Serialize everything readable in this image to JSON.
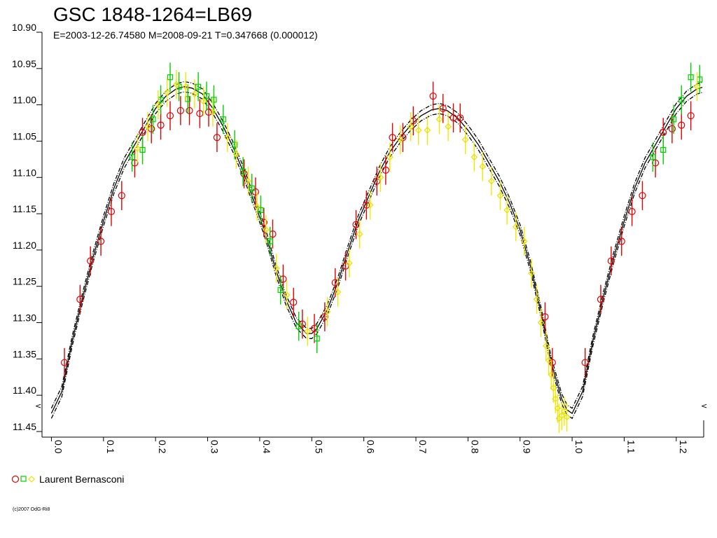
{
  "header": {
    "title": "GSC 1848-1264=LB69",
    "subtitle": "E=2003-12-26.74580    M=2008-09-21    T=0.347668 (0.000012)"
  },
  "footer": {
    "copyright": "(c)2007 OdG-Ri8"
  },
  "legend": {
    "label": "Laurent Bernasconi",
    "placement": "bottom-left"
  },
  "minimum_markers": [
    "<",
    "<"
  ],
  "colors": {
    "red": "#e00000",
    "green": "#00d000",
    "yellow": "#f0e800",
    "model": "#000000"
  },
  "chart_data": {
    "type": "scatter",
    "y_inverted": true,
    "xlim": [
      -0.01,
      1.25
    ],
    "ylim": [
      10.9,
      11.45
    ],
    "x_ticks": [
      "0.0",
      "0.1",
      "0.2",
      "0.3",
      "0.4",
      "0.5",
      "0.6",
      "0.7",
      "0.8",
      "0.9",
      "1.0",
      "1.1",
      "1.2"
    ],
    "y_ticks": [
      "10.90",
      "10.95",
      "11.00",
      "11.05",
      "11.10",
      "11.15",
      "11.20",
      "11.25",
      "11.30",
      "11.35",
      "11.40",
      "11.45"
    ],
    "grid": false,
    "series": [
      {
        "color": "red",
        "marker": "circle",
        "error": 0.02,
        "points": [
          [
            0.025,
            11.355
          ],
          [
            0.055,
            11.268
          ],
          [
            0.075,
            11.215
          ],
          [
            0.095,
            11.188
          ],
          [
            0.115,
            11.147
          ],
          [
            0.135,
            11.125
          ],
          [
            0.16,
            11.08
          ],
          [
            0.175,
            11.038
          ],
          [
            0.192,
            11.033
          ],
          [
            0.21,
            11.028
          ],
          [
            0.228,
            11.015
          ],
          [
            0.248,
            11.008
          ],
          [
            0.265,
            11.008
          ],
          [
            0.285,
            11.012
          ],
          [
            0.302,
            11.01
          ],
          [
            0.318,
            11.045
          ],
          [
            0.37,
            11.095
          ],
          [
            0.392,
            11.12
          ],
          [
            0.408,
            11.162
          ],
          [
            0.425,
            11.178
          ],
          [
            0.445,
            11.24
          ],
          [
            0.465,
            11.272
          ],
          [
            0.482,
            11.302
          ],
          [
            0.505,
            11.308
          ],
          [
            0.525,
            11.292
          ],
          [
            0.545,
            11.245
          ],
          [
            0.565,
            11.222
          ],
          [
            0.585,
            11.165
          ],
          [
            0.605,
            11.138
          ],
          [
            0.625,
            11.105
          ],
          [
            0.642,
            11.09
          ],
          [
            0.655,
            11.045
          ],
          [
            0.675,
            11.045
          ],
          [
            0.695,
            11.022
          ],
          [
            0.733,
            10.988
          ],
          [
            0.752,
            11.005
          ],
          [
            0.772,
            11.018
          ],
          [
            0.785,
            11.018
          ],
          [
            0.948,
            11.292
          ],
          [
            0.962,
            11.355
          ],
          [
            1.025,
            11.355
          ],
          [
            1.055,
            11.268
          ],
          [
            1.075,
            11.215
          ],
          [
            1.095,
            11.188
          ],
          [
            1.115,
            11.147
          ],
          [
            1.135,
            11.125
          ],
          [
            1.16,
            11.08
          ],
          [
            1.175,
            11.038
          ],
          [
            1.192,
            11.033
          ],
          [
            1.21,
            11.028
          ],
          [
            1.228,
            11.015
          ]
        ]
      },
      {
        "color": "green",
        "marker": "square",
        "error": 0.02,
        "points": [
          [
            0.155,
            11.072
          ],
          [
            0.175,
            11.062
          ],
          [
            0.195,
            11.02
          ],
          [
            0.21,
            10.993
          ],
          [
            0.228,
            10.962
          ],
          [
            0.245,
            10.975
          ],
          [
            0.262,
            10.992
          ],
          [
            0.282,
            10.975
          ],
          [
            0.298,
            10.988
          ],
          [
            0.312,
            10.993
          ],
          [
            0.33,
            11.02
          ],
          [
            0.352,
            11.055
          ],
          [
            0.368,
            11.092
          ],
          [
            0.385,
            11.115
          ],
          [
            0.402,
            11.145
          ],
          [
            0.42,
            11.188
          ],
          [
            0.44,
            11.255
          ],
          [
            0.475,
            11.305
          ],
          [
            0.51,
            11.322
          ],
          [
            1.155,
            11.072
          ],
          [
            1.175,
            11.062
          ],
          [
            1.195,
            11.02
          ],
          [
            1.21,
            10.993
          ],
          [
            1.228,
            10.962
          ],
          [
            1.245,
            10.965
          ]
        ]
      },
      {
        "color": "yellow",
        "marker": "diamond",
        "error": 0.02,
        "points": [
          [
            0.165,
            11.06
          ],
          [
            0.185,
            11.03
          ],
          [
            0.205,
            11.0
          ],
          [
            0.222,
            10.983
          ],
          [
            0.24,
            10.972
          ],
          [
            0.258,
            10.975
          ],
          [
            0.275,
            10.985
          ],
          [
            0.292,
            10.995
          ],
          [
            0.31,
            11.01
          ],
          [
            0.338,
            11.045
          ],
          [
            0.355,
            11.068
          ],
          [
            0.378,
            11.105
          ],
          [
            0.395,
            11.14
          ],
          [
            0.412,
            11.172
          ],
          [
            0.432,
            11.225
          ],
          [
            0.452,
            11.262
          ],
          [
            0.492,
            11.312
          ],
          [
            0.53,
            11.285
          ],
          [
            0.55,
            11.258
          ],
          [
            0.572,
            11.218
          ],
          [
            0.592,
            11.178
          ],
          [
            0.612,
            11.138
          ],
          [
            0.632,
            11.1
          ],
          [
            0.65,
            11.072
          ],
          [
            0.67,
            11.048
          ],
          [
            0.69,
            11.03
          ],
          [
            0.705,
            11.035
          ],
          [
            0.722,
            11.035
          ],
          [
            0.745,
            11.02
          ],
          [
            0.762,
            11.03
          ],
          [
            0.795,
            11.048
          ],
          [
            0.812,
            11.072
          ],
          [
            0.828,
            11.085
          ],
          [
            0.845,
            11.105
          ],
          [
            0.862,
            11.125
          ],
          [
            0.875,
            11.145
          ],
          [
            0.892,
            11.168
          ],
          [
            0.908,
            11.188
          ],
          [
            0.922,
            11.232
          ],
          [
            0.932,
            11.268
          ],
          [
            0.94,
            11.3
          ],
          [
            0.95,
            11.332
          ],
          [
            0.955,
            11.352
          ],
          [
            0.96,
            11.372
          ],
          [
            0.964,
            11.39
          ],
          [
            0.968,
            11.405
          ],
          [
            0.972,
            11.418
          ],
          [
            0.975,
            11.432
          ],
          [
            0.98,
            11.428
          ],
          [
            0.985,
            11.422
          ],
          [
            0.99,
            11.43
          ],
          [
            1.24,
            10.975
          ]
        ]
      }
    ],
    "model_curves": [
      {
        "style": "solid",
        "points": [
          [
            0.0,
            11.425
          ],
          [
            0.02,
            11.395
          ],
          [
            0.04,
            11.325
          ],
          [
            0.06,
            11.265
          ],
          [
            0.08,
            11.21
          ],
          [
            0.1,
            11.16
          ],
          [
            0.12,
            11.115
          ],
          [
            0.14,
            11.08
          ],
          [
            0.16,
            11.055
          ],
          [
            0.18,
            11.03
          ],
          [
            0.2,
            11.005
          ],
          [
            0.22,
            10.988
          ],
          [
            0.24,
            10.978
          ],
          [
            0.255,
            10.975
          ],
          [
            0.27,
            10.977
          ],
          [
            0.29,
            10.985
          ],
          [
            0.31,
            11.005
          ],
          [
            0.33,
            11.03
          ],
          [
            0.35,
            11.06
          ],
          [
            0.37,
            11.095
          ],
          [
            0.39,
            11.135
          ],
          [
            0.41,
            11.175
          ],
          [
            0.43,
            11.225
          ],
          [
            0.45,
            11.268
          ],
          [
            0.47,
            11.3
          ],
          [
            0.49,
            11.315
          ],
          [
            0.5,
            11.315
          ],
          [
            0.51,
            11.308
          ],
          [
            0.53,
            11.282
          ],
          [
            0.55,
            11.245
          ],
          [
            0.57,
            11.2
          ],
          [
            0.59,
            11.158
          ],
          [
            0.61,
            11.125
          ],
          [
            0.63,
            11.092
          ],
          [
            0.65,
            11.065
          ],
          [
            0.67,
            11.045
          ],
          [
            0.69,
            11.028
          ],
          [
            0.71,
            11.015
          ],
          [
            0.73,
            11.007
          ],
          [
            0.745,
            11.005
          ],
          [
            0.76,
            11.008
          ],
          [
            0.78,
            11.018
          ],
          [
            0.8,
            11.035
          ],
          [
            0.82,
            11.055
          ],
          [
            0.84,
            11.08
          ],
          [
            0.86,
            11.105
          ],
          [
            0.88,
            11.135
          ],
          [
            0.9,
            11.172
          ],
          [
            0.92,
            11.222
          ],
          [
            0.94,
            11.285
          ],
          [
            0.96,
            11.355
          ],
          [
            0.98,
            11.405
          ],
          [
            0.99,
            11.42
          ],
          [
            1.0,
            11.425
          ],
          [
            1.02,
            11.395
          ],
          [
            1.04,
            11.325
          ],
          [
            1.06,
            11.265
          ],
          [
            1.08,
            11.21
          ],
          [
            1.1,
            11.16
          ],
          [
            1.12,
            11.115
          ],
          [
            1.14,
            11.08
          ],
          [
            1.16,
            11.055
          ],
          [
            1.18,
            11.03
          ],
          [
            1.2,
            11.005
          ],
          [
            1.22,
            10.988
          ],
          [
            1.24,
            10.978
          ],
          [
            1.25,
            10.976
          ]
        ]
      }
    ],
    "envelope_offset": 0.007
  }
}
